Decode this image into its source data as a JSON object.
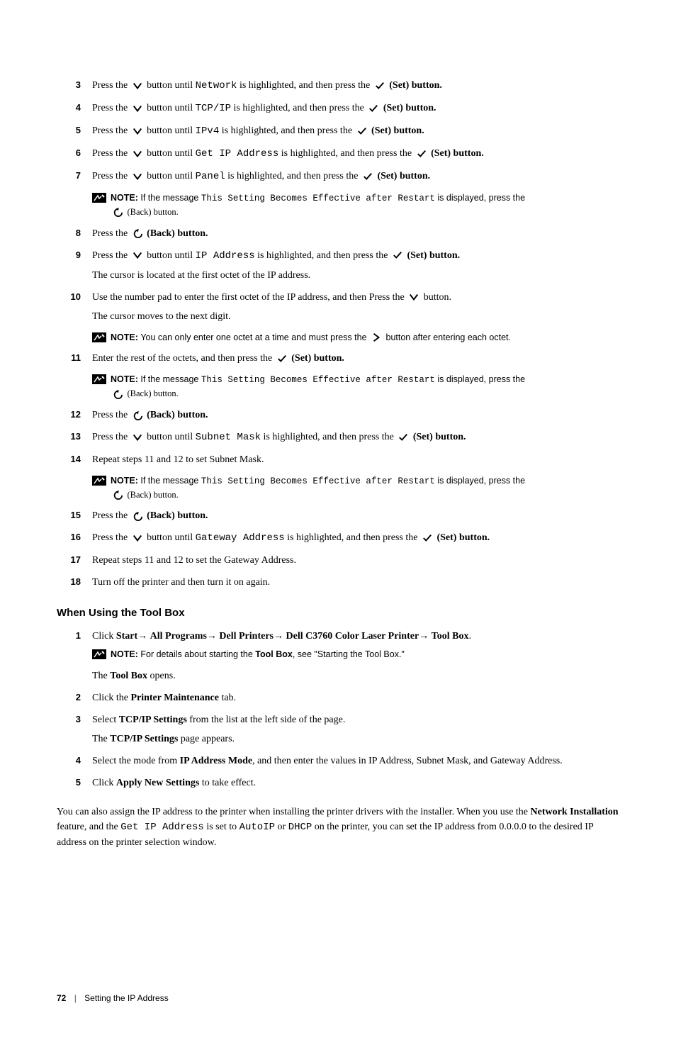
{
  "icons": {
    "down_color": "#000000",
    "check_color": "#000000",
    "back_color": "#000000",
    "right_color": "#000000",
    "note_bg": "#000000",
    "note_fg": "#ffffff"
  },
  "labels": {
    "press_the": "Press the ",
    "button_until": " button until ",
    "highlighted_then_press": " is highlighted, and then press the ",
    "set_button": " (Set) button.",
    "back_button": " (Back) button.",
    "note": "NOTE: "
  },
  "steps_a": [
    {
      "n": "3",
      "code": "Network"
    },
    {
      "n": "4",
      "code": "TCP/IP"
    },
    {
      "n": "5",
      "code": "IPv4"
    },
    {
      "n": "6",
      "code": "Get IP Address"
    },
    {
      "n": "7",
      "code": "Panel"
    }
  ],
  "note_restart": {
    "pre": "If the message ",
    "code": "This Setting Becomes Effective after Restart",
    "mid": " is displayed, press the ",
    "tail": "(Back) button."
  },
  "step8": {
    "n": "8"
  },
  "step9": {
    "n": "9",
    "code": "IP Address",
    "sub": "The cursor is located at the first octet of the IP address."
  },
  "step10": {
    "n": "10",
    "line_pre": "Use the number pad to enter the first octet of the IP address, and then Press the ",
    "line_post": " button.",
    "sub": "The cursor moves to the next digit."
  },
  "note_octet": {
    "pre": "You can only enter one octet at a time and must press the ",
    "post": " button after entering each octet."
  },
  "step11": {
    "n": "11",
    "pre": "Enter the rest of the octets, and then press the ",
    "post": " (Set) button."
  },
  "step12": {
    "n": "12"
  },
  "step13": {
    "n": "13",
    "code": "Subnet Mask"
  },
  "step14": {
    "n": "14",
    "text": "Repeat steps 11 and 12 to set Subnet Mask."
  },
  "step15": {
    "n": "15"
  },
  "step16": {
    "n": "16",
    "code": "Gateway Address"
  },
  "step17": {
    "n": "17",
    "text": "Repeat steps 11 and 12 to set the Gateway Address."
  },
  "step18": {
    "n": "18",
    "text": "Turn off the printer and then turn it on again."
  },
  "section_title": "When Using the Tool Box",
  "tb_step1": {
    "n": "1",
    "pre": "Click ",
    "path": [
      "Start",
      "All Programs",
      "Dell Printers",
      "Dell C3760 Color Laser Printer",
      "Tool Box"
    ],
    "sub_pre": "The ",
    "sub_bold": "Tool Box",
    "sub_post": " opens."
  },
  "tb_note": {
    "pre": "For details about starting the ",
    "bold": "Tool Box",
    "post": ", see \"Starting the Tool Box.\""
  },
  "tb_step2": {
    "n": "2",
    "pre": "Click the ",
    "bold": "Printer Maintenance",
    "post": " tab."
  },
  "tb_step3": {
    "n": "3",
    "pre": "Select ",
    "bold": "TCP/IP Settings",
    "post": " from the list at the left side of the page.",
    "sub_pre": "The ",
    "sub_bold": "TCP/IP Settings",
    "sub_post": " page appears."
  },
  "tb_step4": {
    "n": "4",
    "pre": "Select the mode from ",
    "bold": "IP Address Mode",
    "post": ", and then enter the values in IP Address, Subnet Mask, and Gateway Address."
  },
  "tb_step5": {
    "n": "5",
    "pre": "Click ",
    "bold": "Apply New Settings",
    "post": " to take effect."
  },
  "bottom_para": {
    "pre": "You can also assign the IP address to the printer when installing the printer drivers with the installer. When you use the ",
    "bold": "Network Installation",
    "mid1": " feature, and the ",
    "code1": "Get IP Address",
    "mid2": " is set to ",
    "code2": "AutoIP",
    "mid3": " or ",
    "code3": "DHCP",
    "post": " on the printer, you can set the IP address from 0.0.0.0 to the desired IP address on the printer selection window."
  },
  "footer": {
    "page": "72",
    "title": "Setting the IP Address"
  }
}
